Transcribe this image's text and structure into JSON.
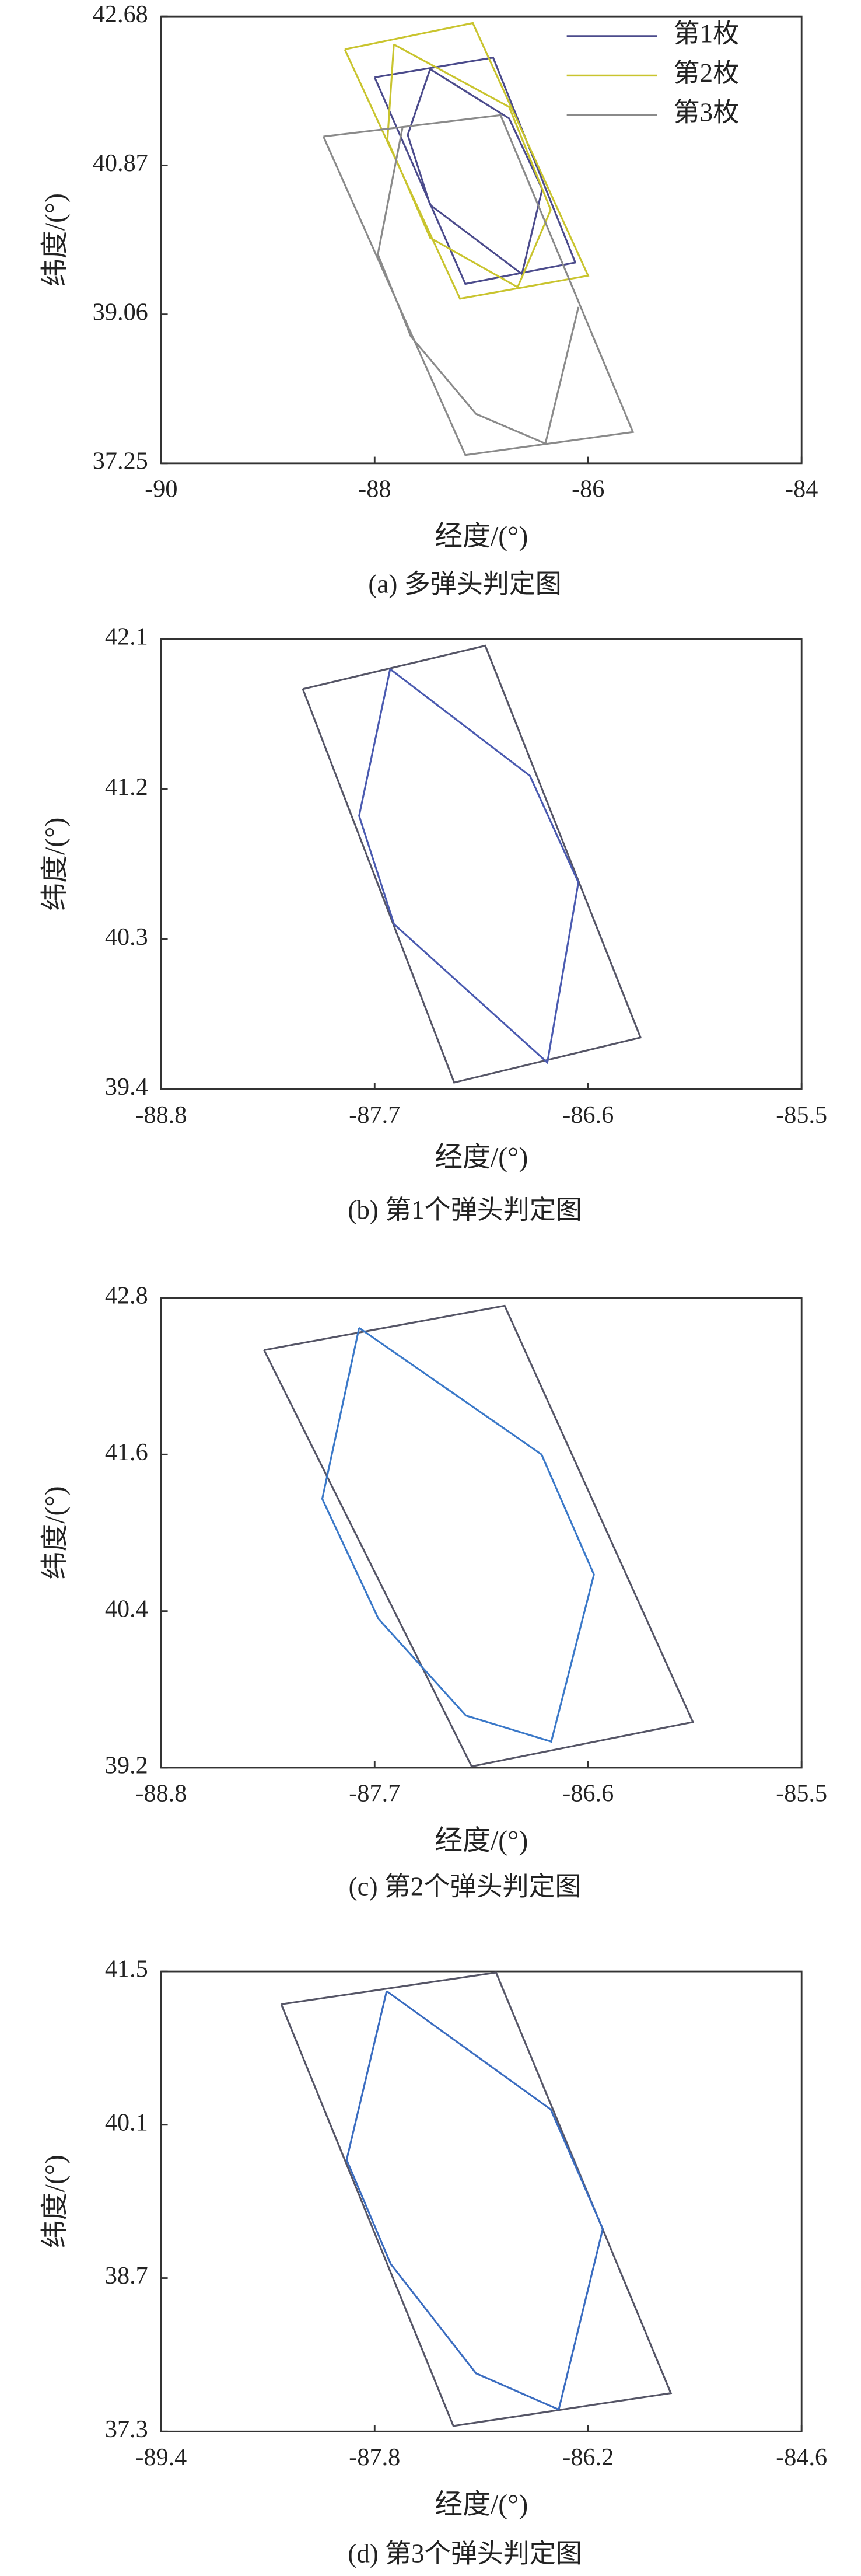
{
  "chart_data": [
    {
      "type": "line",
      "caption": "(a) 多弹头判定图",
      "x_label": "经度/(°)",
      "y_label": "纬度/(°)",
      "xlim": [
        -90,
        -84
      ],
      "ylim": [
        37.25,
        42.68
      ],
      "xticks": [
        -90,
        -88,
        -86,
        -84
      ],
      "yticks": [
        37.25,
        39.06,
        40.87,
        42.68
      ],
      "legend": "upper right",
      "series": [
        {
          "name": "第1枚",
          "color": "#4b4b8c",
          "x": [
            -88.0,
            -86.89,
            -86.12,
            -87.15,
            -88.0,
            null,
            -87.48,
            -86.74,
            -86.43,
            -86.62,
            -87.48,
            -87.69,
            -87.48
          ],
          "y": [
            41.94,
            42.18,
            39.69,
            39.43,
            41.94,
            null,
            42.04,
            41.44,
            40.58,
            39.55,
            40.39,
            41.24,
            42.04
          ]
        },
        {
          "name": "第2枚",
          "color": "#c9c42e",
          "x": [
            -88.28,
            -87.08,
            -86.0,
            -87.2,
            -88.28,
            null,
            -87.82,
            -86.74,
            -86.35,
            -86.66,
            -87.48,
            -87.88,
            -87.82
          ],
          "y": [
            42.28,
            42.6,
            39.53,
            39.25,
            42.28,
            null,
            42.34,
            41.58,
            40.33,
            39.39,
            39.99,
            41.18,
            42.34
          ]
        },
        {
          "name": "第3枚",
          "color": "#8a8a8a",
          "x": [
            -88.48,
            -86.82,
            -85.58,
            -87.15,
            -88.48,
            null,
            -87.74,
            -87.97,
            -87.66,
            -87.05,
            -86.4,
            -86.09
          ],
          "y": [
            41.22,
            41.48,
            37.63,
            37.35,
            41.22,
            null,
            41.32,
            39.79,
            38.79,
            37.85,
            37.49,
            39.15
          ]
        }
      ]
    },
    {
      "type": "line",
      "caption": "(b) 第1个弹头判定图",
      "x_label": "经度/(°)",
      "y_label": "纬度/(°)",
      "xlim": [
        -88.8,
        -85.5
      ],
      "ylim": [
        39.4,
        42.1
      ],
      "xticks": [
        -88.8,
        -87.7,
        -86.6,
        -85.5
      ],
      "yticks": [
        39.4,
        40.3,
        41.2,
        42.1
      ],
      "series": [
        {
          "color": "#555566",
          "x": [
            -88.07,
            -87.13,
            -86.33,
            -87.29,
            -88.07
          ],
          "y": [
            41.8,
            42.06,
            39.71,
            39.44,
            41.8
          ]
        },
        {
          "color": "#4a5ab0",
          "x": [
            -87.62,
            -86.9,
            -86.65,
            -86.81,
            -87.6,
            -87.78,
            -87.62
          ],
          "y": [
            41.92,
            41.28,
            40.64,
            39.56,
            40.39,
            41.04,
            41.92
          ]
        }
      ]
    },
    {
      "type": "line",
      "caption": "(c) 第2个弹头判定图",
      "x_label": "经度/(°)",
      "y_label": "纬度/(°)",
      "xlim": [
        -88.8,
        -85.5
      ],
      "ylim": [
        39.2,
        42.8
      ],
      "xticks": [
        -88.8,
        -87.7,
        -86.6,
        -85.5
      ],
      "yticks": [
        39.2,
        40.4,
        41.6,
        42.8
      ],
      "series": [
        {
          "color": "#555566",
          "x": [
            -88.27,
            -87.03,
            -86.06,
            -87.2,
            -88.27
          ],
          "y": [
            42.4,
            42.74,
            39.55,
            39.21,
            42.4
          ]
        },
        {
          "color": "#3a78c8",
          "x": [
            -87.78,
            -86.84,
            -86.57,
            -86.79,
            -87.23,
            -87.68,
            -87.97,
            -87.78
          ],
          "y": [
            42.57,
            41.6,
            40.68,
            39.4,
            39.6,
            40.34,
            41.26,
            42.57
          ]
        }
      ]
    },
    {
      "type": "line",
      "caption": "(d) 第3个弹头判定图",
      "x_label": "经度/(°)",
      "y_label": "纬度/(°)",
      "xlim": [
        -89.4,
        -84.6
      ],
      "ylim": [
        37.3,
        41.5
      ],
      "xticks": [
        -89.4,
        -87.8,
        -86.2,
        -84.6
      ],
      "yticks": [
        37.3,
        38.7,
        40.1,
        41.5
      ],
      "series": [
        {
          "color": "#555566",
          "x": [
            -88.5,
            -86.89,
            -85.58,
            -87.21,
            -88.5
          ],
          "y": [
            41.2,
            41.49,
            37.65,
            37.35,
            41.2
          ]
        },
        {
          "color": "#3a6cc0",
          "x": [
            -87.71,
            -86.48,
            -86.09,
            -86.42,
            -87.04,
            -87.68,
            -88.01,
            -87.71
          ],
          "y": [
            41.32,
            40.24,
            39.15,
            37.5,
            37.83,
            38.83,
            39.78,
            41.32
          ]
        }
      ]
    }
  ]
}
